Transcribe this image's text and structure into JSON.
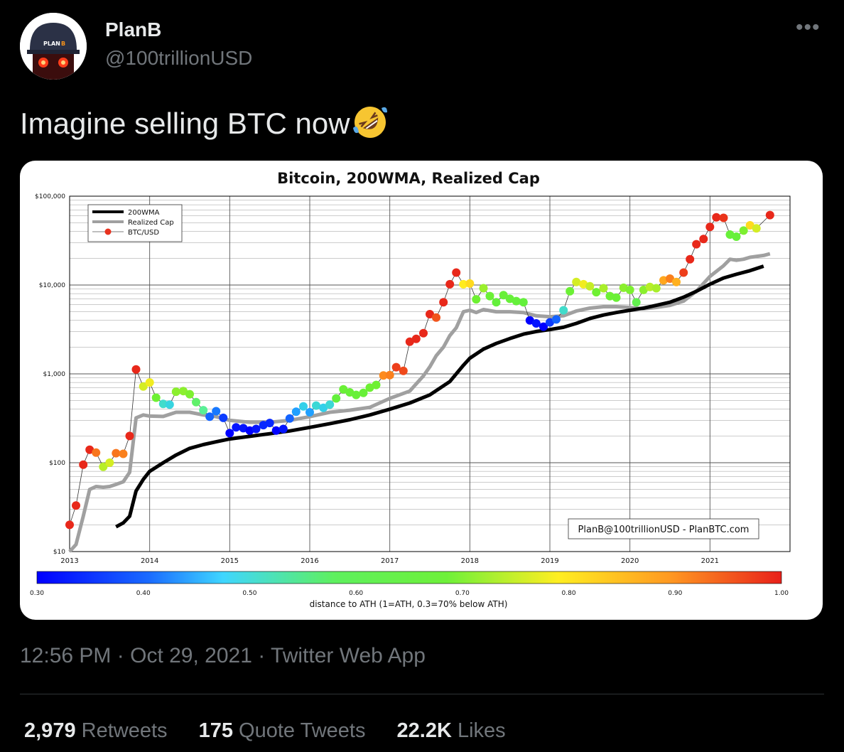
{
  "tweet": {
    "author_name": "PlanB",
    "author_handle": "@100trillionUSD",
    "avatar_cap_text": "PLAN",
    "avatar_cap_b": "B",
    "text": "Imagine selling BTC now",
    "emoji": "rolling-on-the-floor-laughing",
    "more_icon": "•••",
    "time": "12:56 PM",
    "sep": "·",
    "date": "Oct 29, 2021",
    "source": "Twitter Web App",
    "retweets_count": "2,979",
    "retweets_label": "Retweets",
    "quotes_count": "175",
    "quotes_label": "Quote Tweets",
    "likes_count": "22.2K",
    "likes_label": "Likes"
  },
  "colors": {
    "background": "#000000",
    "text": "#e7e9ea",
    "muted": "#71767b",
    "divider": "#2f3336"
  },
  "chart_data": {
    "type": "scatter",
    "title": "Bitcoin, 200WMA, Realized Cap",
    "y_scale": "log",
    "ylim": [
      10,
      100000
    ],
    "xlim": [
      2013,
      2022
    ],
    "x_ticks": [
      "2013",
      "2014",
      "2015",
      "2016",
      "2017",
      "2018",
      "2019",
      "2020",
      "2021"
    ],
    "y_ticks": [
      "$10",
      "$100",
      "$1,000",
      "$10,000",
      "$100,000"
    ],
    "grid": true,
    "legend_position": "top-left",
    "legend": [
      "200WMA",
      "Realized Cap",
      "BTC/USD"
    ],
    "watermark": "PlanB@100trillionUSD  -  PlanBTC.com",
    "colorbar": {
      "label": "distance to ATH (1=ATH, 0.3=70% below ATH)",
      "ticks": [
        "0.30",
        "0.40",
        "0.50",
        "0.60",
        "0.70",
        "0.80",
        "0.90",
        "1.00"
      ],
      "range": [
        0.3,
        1.0
      ]
    },
    "series": [
      {
        "name": "200WMA",
        "color": "#000000",
        "points": [
          [
            2013.58,
            19
          ],
          [
            2013.67,
            21
          ],
          [
            2013.75,
            25
          ],
          [
            2013.83,
            48
          ],
          [
            2013.92,
            65
          ],
          [
            2014.0,
            80
          ],
          [
            2014.17,
            100
          ],
          [
            2014.33,
            122
          ],
          [
            2014.5,
            145
          ],
          [
            2014.67,
            160
          ],
          [
            2014.83,
            172
          ],
          [
            2015.0,
            185
          ],
          [
            2015.25,
            198
          ],
          [
            2015.5,
            212
          ],
          [
            2015.75,
            228
          ],
          [
            2016.0,
            250
          ],
          [
            2016.25,
            275
          ],
          [
            2016.5,
            305
          ],
          [
            2016.75,
            345
          ],
          [
            2017.0,
            400
          ],
          [
            2017.25,
            470
          ],
          [
            2017.5,
            580
          ],
          [
            2017.75,
            820
          ],
          [
            2017.92,
            1250
          ],
          [
            2018.0,
            1500
          ],
          [
            2018.17,
            1900
          ],
          [
            2018.33,
            2200
          ],
          [
            2018.5,
            2500
          ],
          [
            2018.67,
            2800
          ],
          [
            2018.83,
            3000
          ],
          [
            2019.0,
            3150
          ],
          [
            2019.17,
            3350
          ],
          [
            2019.33,
            3700
          ],
          [
            2019.5,
            4200
          ],
          [
            2019.67,
            4600
          ],
          [
            2019.83,
            4900
          ],
          [
            2020.0,
            5200
          ],
          [
            2020.17,
            5500
          ],
          [
            2020.33,
            5900
          ],
          [
            2020.5,
            6400
          ],
          [
            2020.67,
            7300
          ],
          [
            2020.83,
            8500
          ],
          [
            2021.0,
            10200
          ],
          [
            2021.17,
            12000
          ],
          [
            2021.33,
            13200
          ],
          [
            2021.5,
            14500
          ],
          [
            2021.67,
            16300
          ]
        ]
      },
      {
        "name": "Realized Cap",
        "color": "#a0a0a0",
        "points": [
          [
            2013.0,
            10
          ],
          [
            2013.08,
            12
          ],
          [
            2013.17,
            25
          ],
          [
            2013.25,
            50
          ],
          [
            2013.33,
            54
          ],
          [
            2013.42,
            53
          ],
          [
            2013.5,
            54
          ],
          [
            2013.58,
            57
          ],
          [
            2013.67,
            61
          ],
          [
            2013.75,
            78
          ],
          [
            2013.83,
            320
          ],
          [
            2013.92,
            345
          ],
          [
            2014.0,
            335
          ],
          [
            2014.17,
            332
          ],
          [
            2014.33,
            370
          ],
          [
            2014.5,
            370
          ],
          [
            2014.67,
            345
          ],
          [
            2014.83,
            330
          ],
          [
            2015.0,
            300
          ],
          [
            2015.25,
            285
          ],
          [
            2015.5,
            285
          ],
          [
            2015.75,
            300
          ],
          [
            2016.0,
            330
          ],
          [
            2016.25,
            370
          ],
          [
            2016.5,
            390
          ],
          [
            2016.75,
            420
          ],
          [
            2017.0,
            530
          ],
          [
            2017.25,
            640
          ],
          [
            2017.42,
            950
          ],
          [
            2017.5,
            1200
          ],
          [
            2017.58,
            1600
          ],
          [
            2017.67,
            2000
          ],
          [
            2017.75,
            2700
          ],
          [
            2017.83,
            3300
          ],
          [
            2017.92,
            5000
          ],
          [
            2018.0,
            5200
          ],
          [
            2018.08,
            4900
          ],
          [
            2018.17,
            5300
          ],
          [
            2018.33,
            5000
          ],
          [
            2018.5,
            5000
          ],
          [
            2018.67,
            4900
          ],
          [
            2018.83,
            4500
          ],
          [
            2019.0,
            4400
          ],
          [
            2019.17,
            4500
          ],
          [
            2019.33,
            5100
          ],
          [
            2019.5,
            5500
          ],
          [
            2019.67,
            5700
          ],
          [
            2019.83,
            5700
          ],
          [
            2020.0,
            5600
          ],
          [
            2020.17,
            5400
          ],
          [
            2020.33,
            5600
          ],
          [
            2020.5,
            5900
          ],
          [
            2020.67,
            6600
          ],
          [
            2020.83,
            8500
          ],
          [
            2021.0,
            12500
          ],
          [
            2021.17,
            16500
          ],
          [
            2021.25,
            19500
          ],
          [
            2021.33,
            19000
          ],
          [
            2021.42,
            19500
          ],
          [
            2021.5,
            20500
          ],
          [
            2021.67,
            21500
          ],
          [
            2021.75,
            22500
          ]
        ]
      },
      {
        "name": "BTC/USD",
        "points": [
          [
            2013.0,
            20,
            1.0
          ],
          [
            2013.08,
            33,
            1.0
          ],
          [
            2013.17,
            95,
            1.0
          ],
          [
            2013.25,
            140,
            1.0
          ],
          [
            2013.33,
            130,
            0.93
          ],
          [
            2013.42,
            90,
            0.75
          ],
          [
            2013.5,
            100,
            0.77
          ],
          [
            2013.58,
            128,
            0.93
          ],
          [
            2013.67,
            126,
            0.92
          ],
          [
            2013.75,
            200,
            1.0
          ],
          [
            2013.83,
            1120,
            1.0
          ],
          [
            2013.92,
            720,
            0.77
          ],
          [
            2014.0,
            800,
            0.79
          ],
          [
            2014.08,
            540,
            0.69
          ],
          [
            2014.17,
            460,
            0.45
          ],
          [
            2014.25,
            450,
            0.43
          ],
          [
            2014.33,
            630,
            0.72
          ],
          [
            2014.42,
            640,
            0.72
          ],
          [
            2014.5,
            590,
            0.71
          ],
          [
            2014.58,
            480,
            0.55
          ],
          [
            2014.67,
            390,
            0.5
          ],
          [
            2014.75,
            330,
            0.35
          ],
          [
            2014.83,
            380,
            0.36
          ],
          [
            2014.92,
            320,
            0.33
          ],
          [
            2015.0,
            215,
            0.3
          ],
          [
            2015.08,
            250,
            0.31
          ],
          [
            2015.17,
            245,
            0.31
          ],
          [
            2015.25,
            230,
            0.3
          ],
          [
            2015.33,
            240,
            0.31
          ],
          [
            2015.42,
            265,
            0.32
          ],
          [
            2015.5,
            280,
            0.32
          ],
          [
            2015.58,
            230,
            0.3
          ],
          [
            2015.67,
            240,
            0.31
          ],
          [
            2015.75,
            315,
            0.35
          ],
          [
            2015.83,
            375,
            0.38
          ],
          [
            2015.92,
            430,
            0.42
          ],
          [
            2016.0,
            370,
            0.38
          ],
          [
            2016.08,
            440,
            0.44
          ],
          [
            2016.17,
            415,
            0.42
          ],
          [
            2016.25,
            450,
            0.44
          ],
          [
            2016.33,
            530,
            0.6
          ],
          [
            2016.42,
            670,
            0.66
          ],
          [
            2016.5,
            620,
            0.64
          ],
          [
            2016.58,
            580,
            0.63
          ],
          [
            2016.67,
            610,
            0.64
          ],
          [
            2016.75,
            700,
            0.69
          ],
          [
            2016.83,
            750,
            0.7
          ],
          [
            2016.92,
            960,
            0.91
          ],
          [
            2017.0,
            970,
            0.92
          ],
          [
            2017.08,
            1190,
            0.98
          ],
          [
            2017.17,
            1080,
            0.97
          ],
          [
            2017.25,
            2300,
            1.0
          ],
          [
            2017.33,
            2480,
            1.0
          ],
          [
            2017.42,
            2870,
            1.0
          ],
          [
            2017.5,
            4700,
            1.0
          ],
          [
            2017.58,
            4300,
            0.96
          ],
          [
            2017.67,
            6400,
            1.0
          ],
          [
            2017.75,
            10200,
            1.0
          ],
          [
            2017.83,
            13800,
            1.0
          ],
          [
            2017.92,
            10200,
            0.8
          ],
          [
            2018.0,
            10400,
            0.82
          ],
          [
            2018.08,
            6900,
            0.7
          ],
          [
            2018.17,
            9200,
            0.73
          ],
          [
            2018.25,
            7500,
            0.67
          ],
          [
            2018.33,
            6400,
            0.6
          ],
          [
            2018.42,
            7700,
            0.65
          ],
          [
            2018.5,
            7000,
            0.63
          ],
          [
            2018.58,
            6600,
            0.61
          ],
          [
            2018.67,
            6400,
            0.6
          ],
          [
            2018.75,
            4000,
            0.3
          ],
          [
            2018.83,
            3700,
            0.31
          ],
          [
            2018.92,
            3400,
            0.3
          ],
          [
            2019.0,
            3800,
            0.33
          ],
          [
            2019.08,
            4100,
            0.35
          ],
          [
            2019.17,
            5200,
            0.45
          ],
          [
            2019.25,
            8500,
            0.67
          ],
          [
            2019.33,
            10800,
            0.77
          ],
          [
            2019.42,
            10200,
            0.79
          ],
          [
            2019.5,
            9700,
            0.76
          ],
          [
            2019.58,
            8300,
            0.7
          ],
          [
            2019.67,
            9200,
            0.74
          ],
          [
            2019.75,
            7500,
            0.68
          ],
          [
            2019.83,
            7200,
            0.66
          ],
          [
            2019.92,
            9300,
            0.72
          ],
          [
            2020.0,
            8800,
            0.71
          ],
          [
            2020.08,
            6400,
            0.58
          ],
          [
            2020.17,
            8800,
            0.72
          ],
          [
            2020.25,
            9500,
            0.75
          ],
          [
            2020.33,
            9200,
            0.74
          ],
          [
            2020.42,
            11300,
            0.88
          ],
          [
            2020.5,
            11800,
            0.92
          ],
          [
            2020.58,
            10800,
            0.87
          ],
          [
            2020.67,
            13800,
            0.98
          ],
          [
            2020.75,
            19500,
            1.0
          ],
          [
            2020.83,
            28800,
            1.0
          ],
          [
            2020.92,
            33000,
            1.0
          ],
          [
            2021.0,
            45000,
            1.0
          ],
          [
            2021.08,
            57800,
            1.0
          ],
          [
            2021.17,
            57000,
            0.99
          ],
          [
            2021.25,
            37000,
            0.63
          ],
          [
            2021.33,
            35000,
            0.62
          ],
          [
            2021.42,
            41000,
            0.71
          ],
          [
            2021.5,
            47000,
            0.82
          ],
          [
            2021.58,
            43500,
            0.77
          ],
          [
            2021.75,
            61300,
            1.0
          ]
        ]
      }
    ]
  }
}
